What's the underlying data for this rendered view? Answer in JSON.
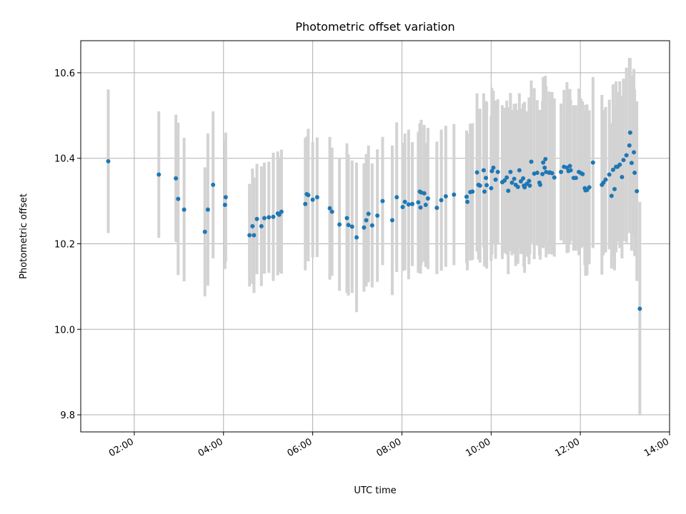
{
  "chart_data": {
    "type": "scatter",
    "title": "Photometric offset variation",
    "xlabel": "UTC time",
    "ylabel": "Photometric offset",
    "xlim": [
      "00:48",
      "14:00"
    ],
    "ylim": [
      9.76,
      10.675
    ],
    "grid": true,
    "x_ticks": [
      "02:00",
      "04:00",
      "06:00",
      "08:00",
      "10:00",
      "12:00",
      "14:00"
    ],
    "y_ticks": [
      9.8,
      10.0,
      10.2,
      10.4,
      10.6
    ],
    "y_tick_labels": [
      "9.8",
      "10.0",
      "10.2",
      "10.4",
      "10.6"
    ],
    "colors": {
      "points": "#1f77b4",
      "errorbars": "#d3d3d3",
      "grid": "#b0b0b0"
    },
    "series": [
      {
        "columns": [
          "time",
          "offset",
          "error"
        ],
        "points": [
          [
            "01:25",
            10.393,
            0.168
          ],
          [
            "02:33",
            10.362,
            0.148
          ],
          [
            "02:56",
            10.353,
            0.149
          ],
          [
            "02:59",
            10.305,
            0.178
          ],
          [
            "03:07",
            10.28,
            0.168
          ],
          [
            "03:35",
            10.228,
            0.151
          ],
          [
            "03:39",
            10.28,
            0.178
          ],
          [
            "03:46",
            10.338,
            0.172
          ],
          [
            "04:02",
            10.291,
            0.15
          ],
          [
            "04:03",
            10.309,
            0.151
          ],
          [
            "04:35",
            10.22,
            0.12
          ],
          [
            "04:39",
            10.241,
            0.135
          ],
          [
            "04:41",
            10.22,
            0.135
          ],
          [
            "04:45",
            10.258,
            0.129
          ],
          [
            "04:51",
            10.241,
            0.14
          ],
          [
            "04:55",
            10.26,
            0.13
          ],
          [
            "05:01",
            10.262,
            0.13
          ],
          [
            "05:07",
            10.263,
            0.15
          ],
          [
            "05:13",
            10.271,
            0.145
          ],
          [
            "05:15",
            10.268,
            0.135
          ],
          [
            "05:18",
            10.275,
            0.145
          ],
          [
            "05:50",
            10.293,
            0.155
          ],
          [
            "05:52",
            10.316,
            0.135
          ],
          [
            "05:54",
            10.314,
            0.155
          ],
          [
            "06:00",
            10.303,
            0.135
          ],
          [
            "06:06",
            10.309,
            0.14
          ],
          [
            "06:23",
            10.283,
            0.167
          ],
          [
            "06:26",
            10.275,
            0.15
          ],
          [
            "06:36",
            10.245,
            0.155
          ],
          [
            "06:46",
            10.26,
            0.175
          ],
          [
            "06:48",
            10.244,
            0.165
          ],
          [
            "06:53",
            10.24,
            0.155
          ],
          [
            "06:59",
            10.215,
            0.175
          ],
          [
            "07:09",
            10.238,
            0.15
          ],
          [
            "07:12",
            10.255,
            0.155
          ],
          [
            "07:15",
            10.27,
            0.16
          ],
          [
            "07:20",
            10.243,
            0.145
          ],
          [
            "07:27",
            10.266,
            0.155
          ],
          [
            "07:34",
            10.3,
            0.15
          ],
          [
            "07:47",
            10.255,
            0.175
          ],
          [
            "07:53",
            10.309,
            0.175
          ],
          [
            "08:01",
            10.286,
            0.15
          ],
          [
            "08:04",
            10.298,
            0.16
          ],
          [
            "08:09",
            10.292,
            0.175
          ],
          [
            "08:14",
            10.293,
            0.145
          ],
          [
            "08:22",
            10.297,
            0.165
          ],
          [
            "08:24",
            10.322,
            0.16
          ],
          [
            "08:25",
            10.285,
            0.155
          ],
          [
            "08:26",
            10.32,
            0.17
          ],
          [
            "08:30",
            10.318,
            0.16
          ],
          [
            "08:32",
            10.291,
            0.145
          ],
          [
            "08:35",
            10.306,
            0.165
          ],
          [
            "08:47",
            10.284,
            0.155
          ],
          [
            "08:53",
            10.302,
            0.165
          ],
          [
            "08:59",
            10.311,
            0.165
          ],
          [
            "09:10",
            10.315,
            0.165
          ],
          [
            "09:27",
            10.31,
            0.155
          ],
          [
            "09:28",
            10.298,
            0.16
          ],
          [
            "09:32",
            10.321,
            0.16
          ],
          [
            "09:35",
            10.322,
            0.16
          ],
          [
            "09:41",
            10.367,
            0.185
          ],
          [
            "09:43",
            10.338,
            0.175
          ],
          [
            "09:45",
            10.336,
            0.18
          ],
          [
            "09:50",
            10.372,
            0.18
          ],
          [
            "09:51",
            10.322,
            0.175
          ],
          [
            "09:53",
            10.354,
            0.18
          ],
          [
            "09:54",
            10.337,
            0.195
          ],
          [
            "10:00",
            10.33,
            0.17
          ],
          [
            "10:01",
            10.37,
            0.195
          ],
          [
            "10:03",
            10.378,
            0.18
          ],
          [
            "10:06",
            10.35,
            0.185
          ],
          [
            "10:09",
            10.368,
            0.17
          ],
          [
            "10:15",
            10.344,
            0.18
          ],
          [
            "10:18",
            10.348,
            0.17
          ],
          [
            "10:21",
            10.355,
            0.18
          ],
          [
            "10:23",
            10.324,
            0.195
          ],
          [
            "10:26",
            10.368,
            0.185
          ],
          [
            "10:28",
            10.343,
            0.17
          ],
          [
            "10:31",
            10.352,
            0.175
          ],
          [
            "10:33",
            10.338,
            0.19
          ],
          [
            "10:36",
            10.333,
            0.18
          ],
          [
            "10:38",
            10.372,
            0.18
          ],
          [
            "10:40",
            10.346,
            0.17
          ],
          [
            "10:43",
            10.353,
            0.175
          ],
          [
            "10:44",
            10.336,
            0.19
          ],
          [
            "10:45",
            10.332,
            0.2
          ],
          [
            "10:48",
            10.34,
            0.17
          ],
          [
            "10:51",
            10.347,
            0.195
          ],
          [
            "10:52",
            10.336,
            0.16
          ],
          [
            "10:54",
            10.392,
            0.19
          ],
          [
            "10:58",
            10.364,
            0.2
          ],
          [
            "11:02",
            10.366,
            0.17
          ],
          [
            "11:05",
            10.343,
            0.17
          ],
          [
            "11:06",
            10.338,
            0.175
          ],
          [
            "11:09",
            10.363,
            0.17
          ],
          [
            "11:10",
            10.39,
            0.2
          ],
          [
            "11:12",
            10.378,
            0.18
          ],
          [
            "11:13",
            10.398,
            0.195
          ],
          [
            "11:14",
            10.368,
            0.2
          ],
          [
            "11:18",
            10.366,
            0.19
          ],
          [
            "11:19",
            10.367,
            0.17
          ],
          [
            "11:22",
            10.365,
            0.19
          ],
          [
            "11:25",
            10.355,
            0.185
          ],
          [
            "11:34",
            10.368,
            0.16
          ],
          [
            "11:38",
            10.38,
            0.18
          ],
          [
            "11:42",
            10.378,
            0.2
          ],
          [
            "11:44",
            10.37,
            0.19
          ],
          [
            "11:46",
            10.382,
            0.18
          ],
          [
            "11:47",
            10.372,
            0.165
          ],
          [
            "11:51",
            10.354,
            0.17
          ],
          [
            "11:54",
            10.354,
            0.17
          ],
          [
            "11:58",
            10.368,
            0.195
          ],
          [
            "12:01",
            10.365,
            0.175
          ],
          [
            "12:03",
            10.363,
            0.17
          ],
          [
            "12:06",
            10.33,
            0.18
          ],
          [
            "12:07",
            10.325,
            0.2
          ],
          [
            "12:09",
            10.326,
            0.2
          ],
          [
            "12:12",
            10.332,
            0.18
          ],
          [
            "12:17",
            10.39,
            0.2
          ],
          [
            "12:29",
            10.338,
            0.21
          ],
          [
            "12:31",
            10.343,
            0.17
          ],
          [
            "12:34",
            10.35,
            0.17
          ],
          [
            "12:39",
            10.362,
            0.175
          ],
          [
            "12:42",
            10.312,
            0.17
          ],
          [
            "12:44",
            10.373,
            0.2
          ],
          [
            "12:46",
            10.328,
            0.19
          ],
          [
            "12:48",
            10.38,
            0.2
          ],
          [
            "12:50",
            10.38,
            0.175
          ],
          [
            "12:53",
            10.385,
            0.195
          ],
          [
            "12:56",
            10.356,
            0.19
          ],
          [
            "12:58",
            10.396,
            0.19
          ],
          [
            "13:02",
            10.407,
            0.205
          ],
          [
            "13:06",
            10.43,
            0.205
          ],
          [
            "13:07",
            10.46,
            0.175
          ],
          [
            "13:09",
            10.389,
            0.205
          ],
          [
            "13:12",
            10.414,
            0.195
          ],
          [
            "13:13",
            10.366,
            0.195
          ],
          [
            "13:16",
            10.323,
            0.21
          ],
          [
            "13:20",
            10.048,
            0.25
          ]
        ]
      }
    ]
  }
}
